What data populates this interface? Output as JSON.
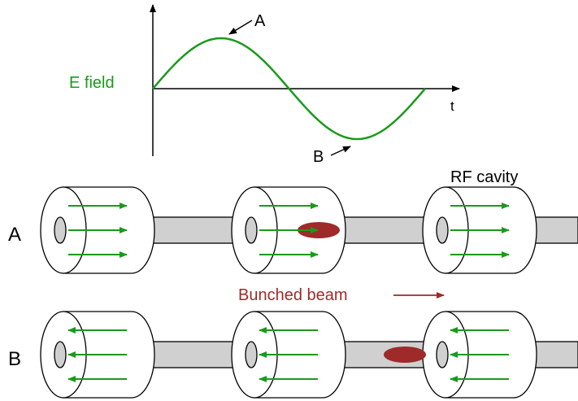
{
  "graph": {
    "ylabel": "E field",
    "xlabel": "t",
    "point_a": "A",
    "point_b": "B"
  },
  "rows": [
    {
      "label": "A",
      "field_direction": "right",
      "bunch_position": "inside-second-cavity"
    },
    {
      "label": "B",
      "field_direction": "left",
      "bunch_position": "between-second-and-third-cavity"
    }
  ],
  "cavity_label": "RF cavity",
  "beam_label": "Bunched beam",
  "colors": {
    "field": "#1a9a1a",
    "beam": "#9e2a2a",
    "pipe": "#d0d0d0",
    "outline": "#000000"
  }
}
